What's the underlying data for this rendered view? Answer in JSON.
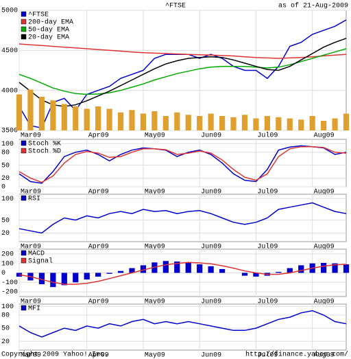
{
  "header": {
    "title": "^FTSE",
    "date": "as of 21-Aug-2009"
  },
  "footer": {
    "copyright": "Copyright 2009 Yahoo! Inc.",
    "url": "http://finance.yahoo.com/"
  },
  "chart_data": [
    {
      "type": "line",
      "categories": [
        "Mar09",
        null,
        null,
        null,
        null,
        null,
        "Apr09",
        null,
        null,
        null,
        null,
        "May09",
        null,
        null,
        null,
        null,
        "Jun09",
        null,
        null,
        null,
        null,
        "Jul09",
        null,
        null,
        null,
        null,
        "Aug09",
        null,
        null,
        null
      ],
      "ylim": [
        3500,
        5000
      ],
      "yticks": [
        3500,
        4000,
        4500,
        5000
      ],
      "y2lim": [
        0,
        100
      ],
      "grid": true,
      "series": [
        {
          "name": "^FTSE",
          "color": "#0000cc",
          "values": [
            3800,
            3560,
            3530,
            3850,
            3900,
            3750,
            3950,
            4000,
            4050,
            4150,
            4200,
            4250,
            4400,
            4450,
            4450,
            4450,
            4400,
            4450,
            4400,
            4300,
            4250,
            4250,
            4150,
            4300,
            4550,
            4600,
            4700,
            4750,
            4800,
            4880
          ]
        },
        {
          "name": "200-day EMA",
          "color": "#dd3333",
          "values": [
            4580,
            4570,
            4560,
            4550,
            4540,
            4530,
            4520,
            4510,
            4500,
            4490,
            4480,
            4470,
            4465,
            4460,
            4455,
            4450,
            4445,
            4440,
            4435,
            4430,
            4420,
            4410,
            4405,
            4400,
            4405,
            4410,
            4420,
            4430,
            4440,
            4450
          ]
        },
        {
          "name": "50-day EMA",
          "color": "#00aa00",
          "values": [
            4200,
            4150,
            4090,
            4030,
            3990,
            3960,
            3950,
            3955,
            3970,
            4000,
            4040,
            4080,
            4130,
            4170,
            4210,
            4240,
            4270,
            4290,
            4300,
            4300,
            4300,
            4290,
            4280,
            4290,
            4320,
            4360,
            4400,
            4440,
            4480,
            4520
          ]
        },
        {
          "name": "20-day EMA",
          "color": "#000000",
          "values": [
            4100,
            3990,
            3880,
            3820,
            3800,
            3820,
            3870,
            3930,
            3990,
            4060,
            4130,
            4200,
            4270,
            4330,
            4370,
            4400,
            4410,
            4420,
            4410,
            4380,
            4340,
            4300,
            4260,
            4250,
            4300,
            4380,
            4460,
            4540,
            4600,
            4650
          ]
        },
        {
          "color": "#e0a030",
          "style": "bar",
          "axis": "y2",
          "values": [
            30,
            34,
            28,
            25,
            22,
            20,
            18,
            20,
            18,
            15,
            17,
            14,
            16,
            12,
            15,
            13,
            12,
            14,
            12,
            11,
            13,
            10,
            12,
            11,
            10,
            9,
            12,
            8,
            10,
            14
          ]
        }
      ]
    },
    {
      "type": "line",
      "categories": [
        "Mar09",
        null,
        null,
        null,
        null,
        null,
        "Apr09",
        null,
        null,
        null,
        null,
        "May09",
        null,
        null,
        null,
        null,
        "Jun09",
        null,
        null,
        null,
        null,
        "Jul09",
        null,
        null,
        null,
        null,
        "Aug09",
        null,
        null,
        null
      ],
      "ylim": [
        0,
        110
      ],
      "yticks": [
        0,
        20,
        50,
        80,
        100
      ],
      "grid": true,
      "series": [
        {
          "name": "Stoch %K",
          "color": "#0000cc",
          "values": [
            30,
            12,
            8,
            35,
            70,
            80,
            85,
            75,
            60,
            75,
            85,
            90,
            88,
            85,
            70,
            80,
            85,
            75,
            55,
            30,
            15,
            12,
            40,
            85,
            92,
            95,
            93,
            90,
            75,
            80
          ]
        },
        {
          "name": "Stoch %D",
          "color": "#dd3333",
          "values": [
            35,
            20,
            10,
            25,
            55,
            75,
            82,
            78,
            68,
            70,
            80,
            88,
            88,
            86,
            75,
            78,
            83,
            78,
            62,
            40,
            22,
            15,
            30,
            70,
            88,
            93,
            93,
            91,
            80,
            78
          ]
        }
      ]
    },
    {
      "type": "line",
      "categories": [
        "Mar09",
        null,
        null,
        null,
        null,
        null,
        "Apr09",
        null,
        null,
        null,
        null,
        "May09",
        null,
        null,
        null,
        null,
        "Jun09",
        null,
        null,
        null,
        null,
        "Jul09",
        null,
        null,
        null,
        null,
        "Aug09",
        null,
        null,
        null
      ],
      "ylim": [
        0,
        110
      ],
      "yticks": [
        20,
        50,
        100
      ],
      "grid": true,
      "series": [
        {
          "name": "RSI",
          "color": "#0000cc",
          "values": [
            30,
            25,
            20,
            40,
            55,
            50,
            60,
            55,
            65,
            70,
            65,
            75,
            70,
            72,
            65,
            70,
            72,
            65,
            55,
            45,
            40,
            45,
            55,
            75,
            80,
            85,
            90,
            80,
            70,
            65
          ]
        }
      ]
    },
    {
      "type": "line",
      "categories": [
        "Mar09",
        null,
        null,
        null,
        null,
        null,
        "Apr09",
        null,
        null,
        null,
        null,
        "May09",
        null,
        null,
        null,
        null,
        "Jun09",
        null,
        null,
        null,
        null,
        "Jul09",
        null,
        null,
        null,
        null,
        "Aug09",
        null,
        null,
        null
      ],
      "ylim": [
        -250,
        250
      ],
      "yticks": [
        -200,
        -100,
        0,
        100,
        200
      ],
      "grid": true,
      "series": [
        {
          "name": "MACD",
          "color": "#0000cc",
          "style": "bar",
          "values": [
            -40,
            -80,
            -120,
            -150,
            -130,
            -100,
            -70,
            -40,
            -10,
            20,
            50,
            80,
            110,
            125,
            120,
            110,
            90,
            70,
            40,
            0,
            -30,
            -40,
            -30,
            10,
            50,
            80,
            100,
            105,
            100,
            90
          ]
        },
        {
          "name": "Signal",
          "color": "#dd3333",
          "values": [
            -20,
            -40,
            -70,
            -100,
            -120,
            -120,
            -110,
            -90,
            -60,
            -30,
            0,
            30,
            60,
            85,
            100,
            110,
            105,
            95,
            75,
            50,
            20,
            0,
            -15,
            -15,
            0,
            25,
            50,
            70,
            85,
            90
          ]
        }
      ]
    },
    {
      "type": "line",
      "categories": [
        "Mar09",
        null,
        null,
        null,
        null,
        null,
        "Apr09",
        null,
        null,
        null,
        null,
        "May09",
        null,
        null,
        null,
        null,
        "Jun09",
        null,
        null,
        null,
        null,
        "Jul09",
        null,
        null,
        null,
        null,
        "Aug09",
        null,
        null,
        null
      ],
      "ylim": [
        0,
        105
      ],
      "yticks": [
        20,
        50,
        80,
        100
      ],
      "grid": true,
      "series": [
        {
          "name": "MFI",
          "color": "#0000cc",
          "values": [
            55,
            40,
            30,
            40,
            50,
            45,
            55,
            50,
            60,
            55,
            65,
            70,
            60,
            65,
            60,
            65,
            60,
            55,
            50,
            45,
            45,
            50,
            60,
            70,
            75,
            85,
            90,
            80,
            65,
            60
          ]
        }
      ]
    }
  ]
}
